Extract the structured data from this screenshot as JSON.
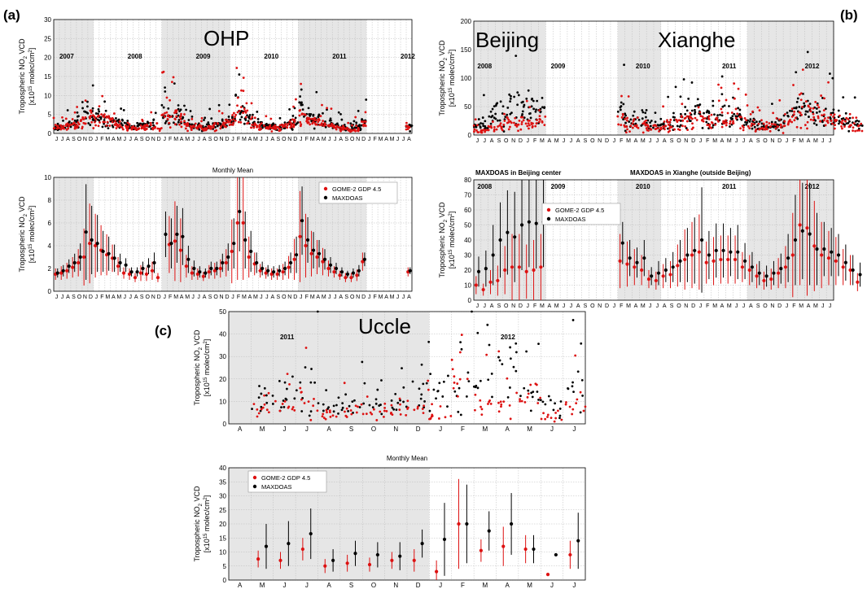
{
  "panel_labels": {
    "a": "(a)",
    "b": "(b)",
    "c": "(c)"
  },
  "colors": {
    "gome2": "#dd1111",
    "maxdoas": "#000000",
    "shade": "#e6e6e6",
    "grid": "#bbbbbb"
  },
  "ylabel_main": "Tropospheric NO",
  "ylabel_sub": "2",
  "ylabel_tail": " VCD",
  "yunit_a": "[x10",
  "yunit_b": "15",
  "yunit_c": " molec/cm",
  "yunit_d": "2",
  "yunit_e": "]",
  "chart_data": [
    {
      "id": "ohp_daily",
      "type": "scatter",
      "station": "OHP",
      "ylim": [
        0,
        30
      ],
      "yticks": [
        0,
        5,
        10,
        15,
        20,
        25,
        30
      ],
      "month_labels": "JJASONDJFMAMJJASONDJFMAMJJASONDJFMAMJJASONDJFMAMJJASONDJFMAMJJA",
      "year_labels": [
        "2007",
        "2008",
        "2009",
        "2010",
        "2011",
        "2012"
      ],
      "grid": true,
      "series": [
        {
          "name": "GOME-2 GDP 4.5",
          "color": "#dd1111"
        },
        {
          "name": "MAXDOAS",
          "color": "#000000"
        }
      ],
      "level_sequence_gome2": [
        1.5,
        1.6,
        1.8,
        2.1,
        2.5,
        3.0,
        4.2,
        4.0,
        3.6,
        3.2,
        2.9,
        2.2,
        1.6,
        1.5,
        1.2,
        1.6,
        1.5,
        1.8,
        1.2,
        4.8,
        4.1,
        4.4,
        3.6,
        2.2,
        1.6,
        1.5,
        1.3,
        1.7,
        1.8,
        2.0,
        2.5,
        3.5,
        6.0,
        6.0,
        3.0,
        2.4,
        1.8,
        1.6,
        1.5,
        1.5,
        1.7,
        2.1,
        2.8,
        4.8,
        4.0,
        3.3,
        3.0,
        2.6,
        2.0,
        1.7,
        1.4,
        1.2,
        1.2,
        1.4,
        2.6,
        0,
        0,
        0,
        0,
        0,
        0,
        0,
        1.7
      ],
      "level_sequence_maxdoas": [
        1.6,
        1.8,
        2.2,
        2.5,
        3.0,
        5.2,
        4.5,
        4.2,
        3.5,
        3.3,
        2.9,
        2.5,
        2.3,
        1.7,
        1.7,
        2.0,
        2.2,
        2.5,
        0,
        5.0,
        4.2,
        5.0,
        4.8,
        2.8,
        2.0,
        1.7,
        1.6,
        2.0,
        2.0,
        2.5,
        3.0,
        4.2,
        7.0,
        4.5,
        3.5,
        2.5,
        2.0,
        1.8,
        1.7,
        1.8,
        2.0,
        2.5,
        3.2,
        6.2,
        4.5,
        3.6,
        3.3,
        2.8,
        2.3,
        2.0,
        1.7,
        1.5,
        1.6,
        1.8,
        2.8,
        0,
        0,
        0,
        0,
        0,
        0,
        0,
        1.8
      ]
    },
    {
      "id": "ohp_monthly",
      "type": "scatter",
      "title": "Monthly Mean",
      "ylim": [
        0,
        10
      ],
      "yticks": [
        0,
        2,
        4,
        6,
        8,
        10
      ],
      "month_labels": "JJASONDJFMAMJJASONDJFMAMJJASONDJFMAMJJASONDJFMAMJJASONDJFMAMJJA",
      "grid": true,
      "legend": {
        "placement": "top-right",
        "entries": [
          "GOME-2 GDP 4.5",
          "MAXDOAS"
        ]
      },
      "series": [
        {
          "name": "GOME-2 GDP 4.5",
          "color": "#dd1111",
          "values": [
            1.5,
            1.6,
            1.8,
            2.1,
            2.5,
            3.0,
            4.2,
            4.0,
            3.6,
            3.2,
            2.9,
            2.2,
            1.6,
            1.5,
            1.2,
            1.6,
            1.5,
            1.8,
            1.2,
            null,
            4.1,
            4.4,
            3.6,
            2.2,
            1.6,
            1.5,
            1.3,
            1.7,
            1.8,
            2.0,
            2.5,
            3.5,
            6.0,
            6.0,
            3.0,
            2.4,
            1.8,
            1.6,
            1.5,
            1.5,
            1.7,
            2.1,
            2.8,
            4.8,
            4.0,
            3.3,
            3.0,
            2.6,
            2.0,
            1.7,
            1.4,
            1.2,
            1.2,
            1.4,
            2.6,
            null,
            null,
            null,
            null,
            null,
            null,
            null,
            1.7
          ],
          "err": [
            0.5,
            0.6,
            0.7,
            0.9,
            1.2,
            2.5,
            3.5,
            2.8,
            2.2,
            1.8,
            1.2,
            0.8,
            0.5,
            0.5,
            0.4,
            0.7,
            0.6,
            0.8,
            0.4,
            null,
            2.5,
            3.5,
            2.8,
            1.0,
            0.6,
            0.5,
            0.4,
            0.6,
            0.7,
            0.8,
            1.2,
            2.8,
            5.0,
            5.0,
            1.8,
            1.0,
            0.6,
            0.5,
            0.5,
            0.5,
            0.7,
            1.0,
            1.8,
            4.0,
            2.8,
            2.0,
            1.5,
            1.2,
            0.7,
            0.5,
            0.4,
            0.4,
            0.4,
            0.5,
            0.8,
            null,
            null,
            null,
            null,
            null,
            null,
            null,
            0.4
          ]
        },
        {
          "name": "MAXDOAS",
          "color": "#000000",
          "values": [
            1.6,
            1.8,
            2.2,
            2.5,
            3.0,
            5.2,
            4.5,
            4.2,
            3.5,
            3.3,
            2.9,
            2.5,
            2.3,
            1.7,
            1.7,
            2.0,
            2.2,
            2.5,
            null,
            5.0,
            4.2,
            5.0,
            4.8,
            2.8,
            2.0,
            1.7,
            1.6,
            2.0,
            2.0,
            2.5,
            3.0,
            4.2,
            7.0,
            4.5,
            3.5,
            2.5,
            2.0,
            1.8,
            1.7,
            1.8,
            2.0,
            2.5,
            3.2,
            6.2,
            4.5,
            3.6,
            3.3,
            2.8,
            2.3,
            2.0,
            1.7,
            1.5,
            1.6,
            1.8,
            2.8,
            null,
            null,
            null,
            null,
            null,
            null,
            null,
            1.8
          ],
          "err": [
            0.4,
            0.5,
            0.6,
            0.8,
            1.2,
            4.2,
            3.0,
            2.5,
            1.8,
            1.5,
            1.2,
            0.8,
            0.6,
            0.4,
            0.4,
            0.6,
            0.7,
            0.9,
            null,
            2.0,
            2.2,
            2.5,
            2.5,
            1.2,
            0.7,
            0.5,
            0.4,
            0.6,
            0.6,
            0.8,
            1.2,
            2.2,
            3.5,
            2.5,
            1.8,
            0.9,
            0.6,
            0.5,
            0.5,
            0.5,
            0.6,
            0.9,
            1.6,
            3.0,
            2.0,
            1.6,
            1.2,
            0.9,
            0.7,
            0.5,
            0.4,
            0.3,
            0.4,
            0.5,
            0.6,
            null,
            null,
            null,
            null,
            null,
            null,
            null,
            0.3
          ]
        }
      ]
    },
    {
      "id": "beijing_xianghe_daily",
      "type": "scatter",
      "stations": [
        "Beijing",
        "Xianghe"
      ],
      "ylim": [
        0,
        200
      ],
      "yticks": [
        0,
        50,
        100,
        150,
        200
      ],
      "month_labels": "JJASONDJFMAMJJASONDJFMAMJJASONDJFMAMJJASONDJFMAMJJ",
      "year_labels": [
        "2008",
        "2009",
        "2010",
        "2011",
        "2012"
      ],
      "grid": true,
      "series": [
        {
          "name": "GOME-2 GDP 4.5",
          "color": "#dd1111"
        },
        {
          "name": "MAXDOAS",
          "color": "#000000"
        }
      ],
      "level_sequence_gome2": [
        10,
        7,
        12,
        13,
        20,
        22,
        22,
        19,
        20,
        22,
        0,
        0,
        0,
        0,
        0,
        0,
        0,
        0,
        0,
        0,
        26,
        24,
        22,
        20,
        14,
        13,
        16,
        17,
        23,
        27,
        30,
        32,
        25,
        26,
        27,
        27,
        27,
        22,
        20,
        16,
        13,
        14,
        18,
        22,
        30,
        50,
        48,
        36,
        30,
        28,
        26,
        22,
        20,
        12
      ],
      "level_sequence_maxdoas": [
        19,
        21,
        30,
        40,
        45,
        42,
        50,
        52,
        51,
        52,
        0,
        0,
        0,
        0,
        0,
        0,
        0,
        0,
        0,
        0,
        38,
        28,
        25,
        28,
        16,
        18,
        20,
        22,
        26,
        30,
        33,
        40,
        30,
        33,
        33,
        32,
        32,
        26,
        22,
        18,
        16,
        18,
        21,
        28,
        40,
        46,
        44,
        34,
        34,
        32,
        30,
        25,
        20,
        17
      ]
    },
    {
      "id": "beijing_xianghe_monthly",
      "type": "scatter",
      "titles": [
        "MAXDOAS in Beijing center",
        "MAXDOAS in Xianghe (outside Beijing)"
      ],
      "ylim": [
        0,
        80
      ],
      "yticks": [
        0,
        10,
        20,
        30,
        40,
        50,
        60,
        70,
        80
      ],
      "month_labels": "JJASONDJFMAMJJASONDJFMAMJJASONDJFMAMJJASONDJFMAMJJ",
      "year_labels": [
        "2008",
        "2009",
        "2010",
        "2011",
        "2012"
      ],
      "grid": true,
      "legend": {
        "placement": "top-left",
        "entries": [
          "GOME-2 GDP 4.5",
          "MAXDOAS"
        ]
      },
      "series": [
        {
          "name": "GOME-2 GDP 4.5",
          "color": "#dd1111",
          "values": [
            10,
            7,
            12,
            13,
            20,
            22,
            22,
            19,
            20,
            22,
            null,
            null,
            null,
            null,
            null,
            null,
            null,
            null,
            null,
            null,
            26,
            24,
            22,
            20,
            14,
            13,
            16,
            17,
            23,
            27,
            30,
            32,
            25,
            26,
            27,
            27,
            27,
            22,
            20,
            16,
            13,
            14,
            18,
            22,
            30,
            50,
            48,
            36,
            30,
            28,
            26,
            22,
            20,
            12
          ],
          "err": [
            6,
            4,
            8,
            10,
            16,
            22,
            22,
            18,
            20,
            22,
            null,
            null,
            null,
            null,
            null,
            null,
            null,
            null,
            null,
            null,
            18,
            15,
            12,
            10,
            6,
            6,
            8,
            9,
            14,
            20,
            22,
            25,
            14,
            16,
            16,
            16,
            16,
            10,
            10,
            8,
            6,
            7,
            10,
            14,
            28,
            40,
            45,
            30,
            22,
            18,
            16,
            12,
            10,
            6
          ]
        },
        {
          "name": "MAXDOAS",
          "color": "#000000",
          "values": [
            19,
            21,
            30,
            40,
            45,
            42,
            50,
            52,
            51,
            52,
            null,
            null,
            null,
            null,
            null,
            null,
            null,
            null,
            null,
            null,
            38,
            28,
            25,
            28,
            16,
            18,
            20,
            22,
            26,
            30,
            33,
            40,
            30,
            33,
            33,
            32,
            32,
            26,
            22,
            18,
            16,
            18,
            21,
            28,
            40,
            46,
            44,
            34,
            34,
            32,
            30,
            25,
            20,
            17
          ],
          "err": [
            10,
            12,
            20,
            25,
            28,
            30,
            30,
            30,
            30,
            30,
            null,
            null,
            null,
            null,
            null,
            null,
            null,
            null,
            null,
            null,
            14,
            12,
            10,
            12,
            6,
            8,
            8,
            10,
            14,
            18,
            22,
            35,
            16,
            18,
            18,
            16,
            18,
            12,
            10,
            8,
            7,
            8,
            10,
            16,
            30,
            32,
            34,
            24,
            18,
            16,
            14,
            12,
            10,
            8
          ]
        }
      ]
    },
    {
      "id": "uccle_daily",
      "type": "scatter",
      "station": "Uccle",
      "ylim": [
        0,
        50
      ],
      "yticks": [
        0,
        10,
        20,
        30,
        40,
        50
      ],
      "month_labels": [
        "A",
        "M",
        "J",
        "J",
        "A",
        "S",
        "O",
        "N",
        "D",
        "J",
        "F",
        "M",
        "A",
        "M",
        "J",
        "J"
      ],
      "year_labels": [
        "2011",
        "2012"
      ],
      "grid": true,
      "series": [
        {
          "name": "GOME-2 GDP 4.5",
          "color": "#dd1111"
        },
        {
          "name": "MAXDOAS",
          "color": "#000000"
        }
      ],
      "level_sequence_gome2": [
        0,
        8,
        7,
        11,
        5,
        6,
        5,
        7,
        7,
        3,
        20,
        10,
        12,
        11,
        2,
        9
      ],
      "level_sequence_maxdoas": [
        0,
        12,
        13,
        17,
        7,
        9,
        9,
        8,
        13,
        14,
        20,
        17,
        20,
        11,
        9,
        14
      ]
    },
    {
      "id": "uccle_monthly",
      "type": "scatter",
      "title": "Monthly Mean",
      "ylim": [
        0,
        40
      ],
      "yticks": [
        0,
        5,
        10,
        15,
        20,
        25,
        30,
        35,
        40
      ],
      "month_labels": [
        "A",
        "M",
        "J",
        "J",
        "A",
        "S",
        "O",
        "N",
        "D",
        "J",
        "F",
        "M",
        "A",
        "M",
        "J",
        "J"
      ],
      "grid": true,
      "legend": {
        "placement": "top-left",
        "entries": [
          "GOME-2 GDP 4.5",
          "MAXDOAS"
        ]
      },
      "series": [
        {
          "name": "GOME-2 GDP 4.5",
          "color": "#dd1111",
          "values": [
            null,
            7.5,
            7,
            11,
            5,
            6,
            5.5,
            7,
            7,
            3,
            20,
            10.5,
            12,
            11,
            2,
            9
          ],
          "err": [
            null,
            3,
            3,
            4,
            2.5,
            3,
            2.5,
            3,
            4,
            4,
            16,
            4,
            7,
            5,
            0.5,
            5
          ]
        },
        {
          "name": "MAXDOAS",
          "color": "#000000",
          "values": [
            null,
            12,
            13,
            16.5,
            7,
            9.5,
            9,
            8.5,
            13,
            14.5,
            20,
            17.5,
            20,
            11,
            9,
            14
          ],
          "err": [
            null,
            8,
            8,
            9,
            4,
            4.5,
            4.5,
            5,
            5,
            13,
            14,
            7,
            11,
            5,
            0.3,
            10
          ]
        }
      ]
    }
  ]
}
